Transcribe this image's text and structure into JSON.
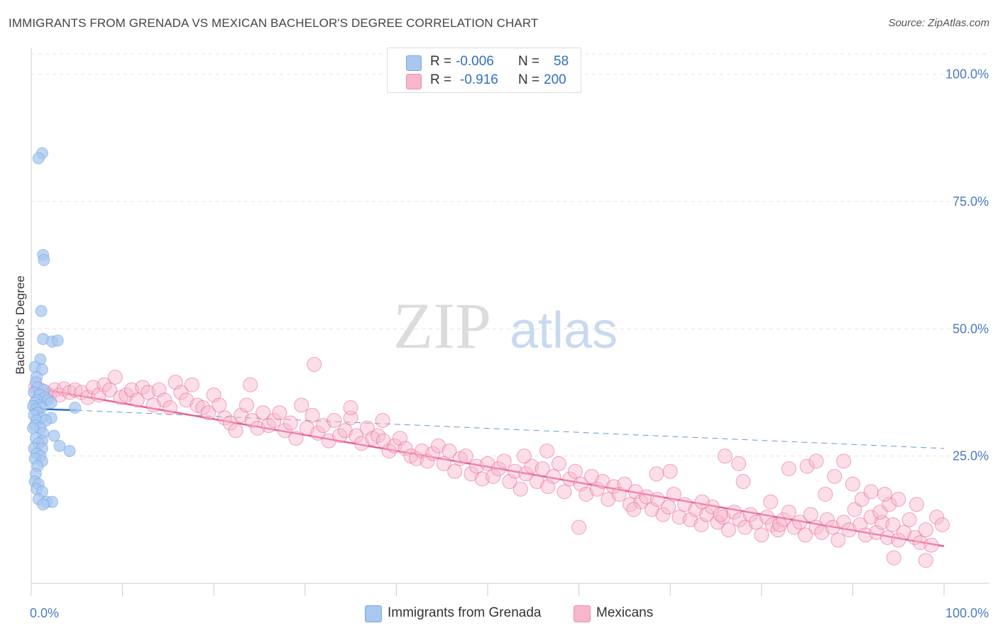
{
  "title": "IMMIGRANTS FROM GRENADA VS MEXICAN BACHELOR'S DEGREE CORRELATION CHART",
  "source": "Source: ZipAtlas.com",
  "watermark": {
    "zip": "ZIP",
    "atlas": "atlas"
  },
  "legend": {
    "rows": [
      {
        "r_label": "R =",
        "r_value": "-0.006",
        "n_label": "N =",
        "n_value": "58",
        "color": "#a8c8f0"
      },
      {
        "r_label": "R =",
        "r_value": "-0.916",
        "n_label": "N =",
        "n_value": "200",
        "color": "#f7b6cb"
      }
    ]
  },
  "bottom_legend": [
    {
      "label": "Immigrants from Grenada",
      "color": "#a8c8f0"
    },
    {
      "label": "Mexicans",
      "color": "#f7b6cb"
    }
  ],
  "chart_data": {
    "type": "scatter",
    "title": "IMMIGRANTS FROM GRENADA VS MEXICAN BACHELOR'S DEGREE CORRELATION CHART",
    "xlabel": "",
    "ylabel": "Bachelor's Degree",
    "xlim": [
      0,
      100
    ],
    "ylim": [
      0,
      104
    ],
    "x_tick_labels": [
      {
        "value": 0,
        "label": "0.0%"
      },
      {
        "value": 100,
        "label": "100.0%"
      }
    ],
    "y_tick_labels": [
      {
        "value": 25,
        "label": "25.0%"
      },
      {
        "value": 50,
        "label": "50.0%"
      },
      {
        "value": 75,
        "label": "75.0%"
      },
      {
        "value": 100,
        "label": "100.0%"
      }
    ],
    "grid": true,
    "legend_position": "top-center",
    "series": [
      {
        "name": "Immigrants from Grenada",
        "color": "#6f9fe0",
        "fill": "#a8c8f0",
        "trend": {
          "x": [
            0,
            5
          ],
          "y": [
            34.3,
            34.0
          ],
          "extended_to": [
            100,
            26.5
          ]
        },
        "points": [
          [
            1.2,
            84.5
          ],
          [
            0.8,
            83.5
          ],
          [
            1.3,
            64.5
          ],
          [
            1.4,
            63.5
          ],
          [
            1.1,
            53.5
          ],
          [
            1.3,
            48.0
          ],
          [
            2.3,
            47.5
          ],
          [
            2.9,
            47.7
          ],
          [
            1.0,
            44.0
          ],
          [
            0.4,
            42.5
          ],
          [
            1.2,
            42.0
          ],
          [
            0.6,
            40.5
          ],
          [
            0.5,
            39.5
          ],
          [
            0.7,
            38.5
          ],
          [
            1.4,
            38.0
          ],
          [
            0.3,
            37.5
          ],
          [
            0.9,
            37.0
          ],
          [
            1.5,
            36.5
          ],
          [
            0.6,
            36.0
          ],
          [
            1.8,
            36.0
          ],
          [
            0.4,
            35.5
          ],
          [
            2.2,
            35.5
          ],
          [
            0.9,
            35.0
          ],
          [
            0.2,
            34.8
          ],
          [
            1.1,
            34.5
          ],
          [
            0.5,
            34.2
          ],
          [
            4.8,
            34.5
          ],
          [
            0.7,
            33.5
          ],
          [
            0.3,
            33.0
          ],
          [
            1.2,
            32.5
          ],
          [
            2.2,
            32.5
          ],
          [
            0.6,
            32.0
          ],
          [
            1.6,
            32.0
          ],
          [
            0.4,
            31.0
          ],
          [
            1.0,
            30.5
          ],
          [
            0.2,
            30.5
          ],
          [
            1.3,
            29.5
          ],
          [
            2.5,
            29.0
          ],
          [
            0.5,
            28.5
          ],
          [
            1.2,
            28.0
          ],
          [
            0.8,
            27.5
          ],
          [
            3.1,
            27.0
          ],
          [
            0.3,
            26.5
          ],
          [
            1.2,
            26.5
          ],
          [
            4.2,
            26.0
          ],
          [
            0.6,
            25.5
          ],
          [
            1.0,
            25.0
          ],
          [
            0.4,
            24.5
          ],
          [
            1.2,
            24.0
          ],
          [
            0.7,
            23.0
          ],
          [
            0.5,
            21.5
          ],
          [
            0.4,
            20.0
          ],
          [
            0.8,
            19.5
          ],
          [
            0.6,
            18.5
          ],
          [
            1.2,
            18.0
          ],
          [
            0.8,
            16.5
          ],
          [
            1.7,
            16.0
          ],
          [
            2.3,
            16.0
          ],
          [
            1.3,
            15.5
          ]
        ]
      },
      {
        "name": "Mexicans",
        "color": "#e8608e",
        "fill": "#f7b6cb",
        "trend": {
          "x": [
            0,
            100
          ],
          "y": [
            38.5,
            7.3
          ]
        },
        "points": [
          [
            0.5,
            38.5
          ],
          [
            1.0,
            38.0
          ],
          [
            1.5,
            37.5
          ],
          [
            2.0,
            37.0
          ],
          [
            2.6,
            38.0
          ],
          [
            3.1,
            37.0
          ],
          [
            3.6,
            38.2
          ],
          [
            4.2,
            37.5
          ],
          [
            4.8,
            38.0
          ],
          [
            5.5,
            37.5
          ],
          [
            6.2,
            36.5
          ],
          [
            6.8,
            38.5
          ],
          [
            7.4,
            37.0
          ],
          [
            8.0,
            39.0
          ],
          [
            8.6,
            38.0
          ],
          [
            9.2,
            40.5
          ],
          [
            9.8,
            36.5
          ],
          [
            10.4,
            37.0
          ],
          [
            11.0,
            38.0
          ],
          [
            11.6,
            36.0
          ],
          [
            12.2,
            38.5
          ],
          [
            12.8,
            37.5
          ],
          [
            13.4,
            35.0
          ],
          [
            14.0,
            38.0
          ],
          [
            14.6,
            36.0
          ],
          [
            15.2,
            34.5
          ],
          [
            15.8,
            39.5
          ],
          [
            16.4,
            37.5
          ],
          [
            17.0,
            36.0
          ],
          [
            17.6,
            39.0
          ],
          [
            18.2,
            35.0
          ],
          [
            18.8,
            34.5
          ],
          [
            19.4,
            33.5
          ],
          [
            20.0,
            37.0
          ],
          [
            20.6,
            35.0
          ],
          [
            21.2,
            32.5
          ],
          [
            21.8,
            31.5
          ],
          [
            22.4,
            30.0
          ],
          [
            23.0,
            33.0
          ],
          [
            23.6,
            35.0
          ],
          [
            24.2,
            32.0
          ],
          [
            24.8,
            30.5
          ],
          [
            25.4,
            33.5
          ],
          [
            26.0,
            31.0
          ],
          [
            26.6,
            32.0
          ],
          [
            27.2,
            33.5
          ],
          [
            27.8,
            30.0
          ],
          [
            28.4,
            31.5
          ],
          [
            29.0,
            28.5
          ],
          [
            29.6,
            35.0
          ],
          [
            30.2,
            30.5
          ],
          [
            30.8,
            33.0
          ],
          [
            31.4,
            29.5
          ],
          [
            32.0,
            31.0
          ],
          [
            32.6,
            28.0
          ],
          [
            33.2,
            32.0
          ],
          [
            33.8,
            29.0
          ],
          [
            34.4,
            30.0
          ],
          [
            35.0,
            32.5
          ],
          [
            35.6,
            29.0
          ],
          [
            36.2,
            27.5
          ],
          [
            36.8,
            30.5
          ],
          [
            37.4,
            28.5
          ],
          [
            38.0,
            29.0
          ],
          [
            38.6,
            28.0
          ],
          [
            39.2,
            26.0
          ],
          [
            39.8,
            27.0
          ],
          [
            40.4,
            28.5
          ],
          [
            41.0,
            26.5
          ],
          [
            41.6,
            25.0
          ],
          [
            42.2,
            24.5
          ],
          [
            42.8,
            26.0
          ],
          [
            43.4,
            24.0
          ],
          [
            44.0,
            25.5
          ],
          [
            44.6,
            27.0
          ],
          [
            45.2,
            23.5
          ],
          [
            45.8,
            26.0
          ],
          [
            46.4,
            22.0
          ],
          [
            47.0,
            24.5
          ],
          [
            47.6,
            25.0
          ],
          [
            48.2,
            21.5
          ],
          [
            48.8,
            23.0
          ],
          [
            49.4,
            20.5
          ],
          [
            50.0,
            23.5
          ],
          [
            50.6,
            21.0
          ],
          [
            51.2,
            22.5
          ],
          [
            51.8,
            24.0
          ],
          [
            52.4,
            20.0
          ],
          [
            53.0,
            22.0
          ],
          [
            53.6,
            18.5
          ],
          [
            54.2,
            21.5
          ],
          [
            54.8,
            23.0
          ],
          [
            55.4,
            20.0
          ],
          [
            56.0,
            22.5
          ],
          [
            56.6,
            19.0
          ],
          [
            57.2,
            21.0
          ],
          [
            57.8,
            23.5
          ],
          [
            58.4,
            18.0
          ],
          [
            59.0,
            20.5
          ],
          [
            59.6,
            22.0
          ],
          [
            60.2,
            19.5
          ],
          [
            60.8,
            17.5
          ],
          [
            61.4,
            21.0
          ],
          [
            62.0,
            18.5
          ],
          [
            62.6,
            20.0
          ],
          [
            63.2,
            16.5
          ],
          [
            63.8,
            19.0
          ],
          [
            64.4,
            17.5
          ],
          [
            65.0,
            19.5
          ],
          [
            65.6,
            15.5
          ],
          [
            66.2,
            18.0
          ],
          [
            66.8,
            16.0
          ],
          [
            67.4,
            17.0
          ],
          [
            68.0,
            14.5
          ],
          [
            68.6,
            16.5
          ],
          [
            69.2,
            13.5
          ],
          [
            69.8,
            15.0
          ],
          [
            70.4,
            17.5
          ],
          [
            71.0,
            13.0
          ],
          [
            71.6,
            15.5
          ],
          [
            72.2,
            12.5
          ],
          [
            72.8,
            14.5
          ],
          [
            73.4,
            11.5
          ],
          [
            74.0,
            13.5
          ],
          [
            74.6,
            15.0
          ],
          [
            75.2,
            12.0
          ],
          [
            75.8,
            13.0
          ],
          [
            76.4,
            10.5
          ],
          [
            77.0,
            14.0
          ],
          [
            77.6,
            12.5
          ],
          [
            78.2,
            11.0
          ],
          [
            78.8,
            13.5
          ],
          [
            79.4,
            12.0
          ],
          [
            80.0,
            9.5
          ],
          [
            80.6,
            13.0
          ],
          [
            81.2,
            11.5
          ],
          [
            81.8,
            10.5
          ],
          [
            82.4,
            12.5
          ],
          [
            83.0,
            14.0
          ],
          [
            83.6,
            11.0
          ],
          [
            84.2,
            12.0
          ],
          [
            84.8,
            9.5
          ],
          [
            85.4,
            13.5
          ],
          [
            86.0,
            11.0
          ],
          [
            86.6,
            10.0
          ],
          [
            87.2,
            12.5
          ],
          [
            87.8,
            11.0
          ],
          [
            88.4,
            8.5
          ],
          [
            89.0,
            12.0
          ],
          [
            89.6,
            10.5
          ],
          [
            90.2,
            14.5
          ],
          [
            90.8,
            11.5
          ],
          [
            91.4,
            9.5
          ],
          [
            92.0,
            13.0
          ],
          [
            92.6,
            10.0
          ],
          [
            93.2,
            12.0
          ],
          [
            93.8,
            9.0
          ],
          [
            94.4,
            11.5
          ],
          [
            95.0,
            8.5
          ],
          [
            95.6,
            10.0
          ],
          [
            96.2,
            12.5
          ],
          [
            96.8,
            9.0
          ],
          [
            97.4,
            8.0
          ],
          [
            98.0,
            10.5
          ],
          [
            98.6,
            7.5
          ],
          [
            99.2,
            13.0
          ],
          [
            99.8,
            11.5
          ],
          [
            91.0,
            16.5
          ],
          [
            93.0,
            14.0
          ],
          [
            94.0,
            15.5
          ],
          [
            76.0,
            25.0
          ],
          [
            77.5,
            23.5
          ],
          [
            81.0,
            16.0
          ],
          [
            83.0,
            22.5
          ],
          [
            85.0,
            23.0
          ],
          [
            87.0,
            17.5
          ],
          [
            89.0,
            24.0
          ],
          [
            92.0,
            18.0
          ],
          [
            95.0,
            16.5
          ],
          [
            97.0,
            15.5
          ],
          [
            73.5,
            16.0
          ],
          [
            75.5,
            13.5
          ],
          [
            78.0,
            20.0
          ],
          [
            82.0,
            11.5
          ],
          [
            86.0,
            24.0
          ],
          [
            88.0,
            21.0
          ],
          [
            90.0,
            19.5
          ],
          [
            93.5,
            17.5
          ],
          [
            66.0,
            14.5
          ],
          [
            68.5,
            21.5
          ],
          [
            38.5,
            32.0
          ],
          [
            31.0,
            43.0
          ],
          [
            24.0,
            39.0
          ],
          [
            35.0,
            34.5
          ],
          [
            54.0,
            25.0
          ],
          [
            56.5,
            26.0
          ],
          [
            60.0,
            11.0
          ],
          [
            70.0,
            22.0
          ],
          [
            94.5,
            5.0
          ],
          [
            98.0,
            4.5
          ]
        ]
      }
    ]
  }
}
